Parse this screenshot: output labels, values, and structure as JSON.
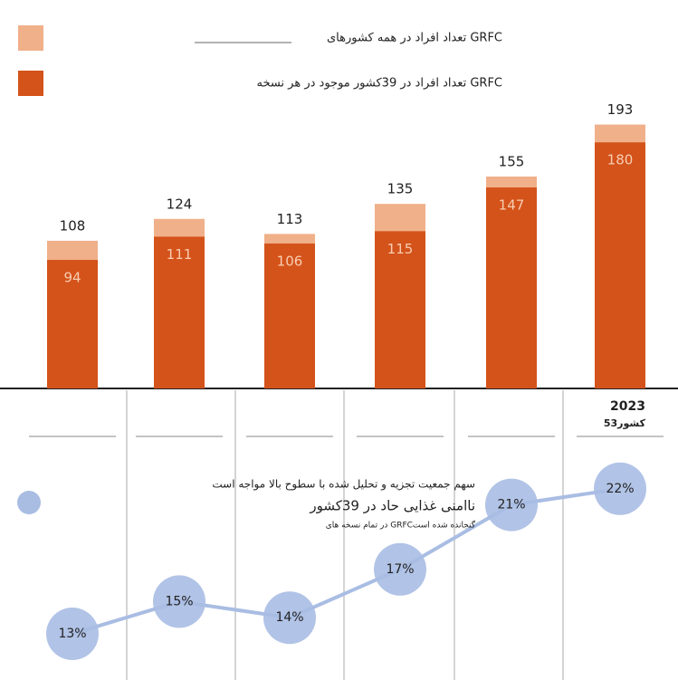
{
  "chart_data": {
    "type": "bar",
    "legend": [
      {
        "name": "تعداد افراد در همه کشورهای GRFC",
        "color": "#f0b08a"
      },
      {
        "name": "تعداد افراد در 39کشور موجود در هر نسخه GRFC",
        "color": "#d4531a"
      }
    ],
    "categories": [
      null,
      null,
      null,
      null,
      null,
      "2023"
    ],
    "sublabel": "53کشور",
    "series": [
      {
        "name": "تعداد افراد در همه کشورهای GRFC",
        "color": "#f0b08a",
        "values": [
          108,
          124,
          113,
          135,
          155,
          193
        ]
      },
      {
        "name": "تعداد افراد در 39کشور موجود در هر نسخه GRFC",
        "color": "#d4531a",
        "values": [
          94,
          111,
          106,
          115,
          147,
          180
        ]
      }
    ],
    "ylim": [
      0,
      200
    ],
    "share": {
      "type": "line",
      "lines": [
        "سهم جمعیت تجزیه و تحلیل شده با سطوح بالا مواجه است",
        "ناامنی غذایی حاد در 39کشور",
        "در تمام نسخه های GRFCگنجانده شده است"
      ],
      "color": "#a9bde3",
      "values": [
        13,
        15,
        14,
        17,
        21,
        22
      ],
      "value_labels": [
        "13%",
        "15%",
        "14%",
        "17%",
        "21%",
        "22%"
      ],
      "y2lim": [
        10,
        25
      ]
    }
  }
}
